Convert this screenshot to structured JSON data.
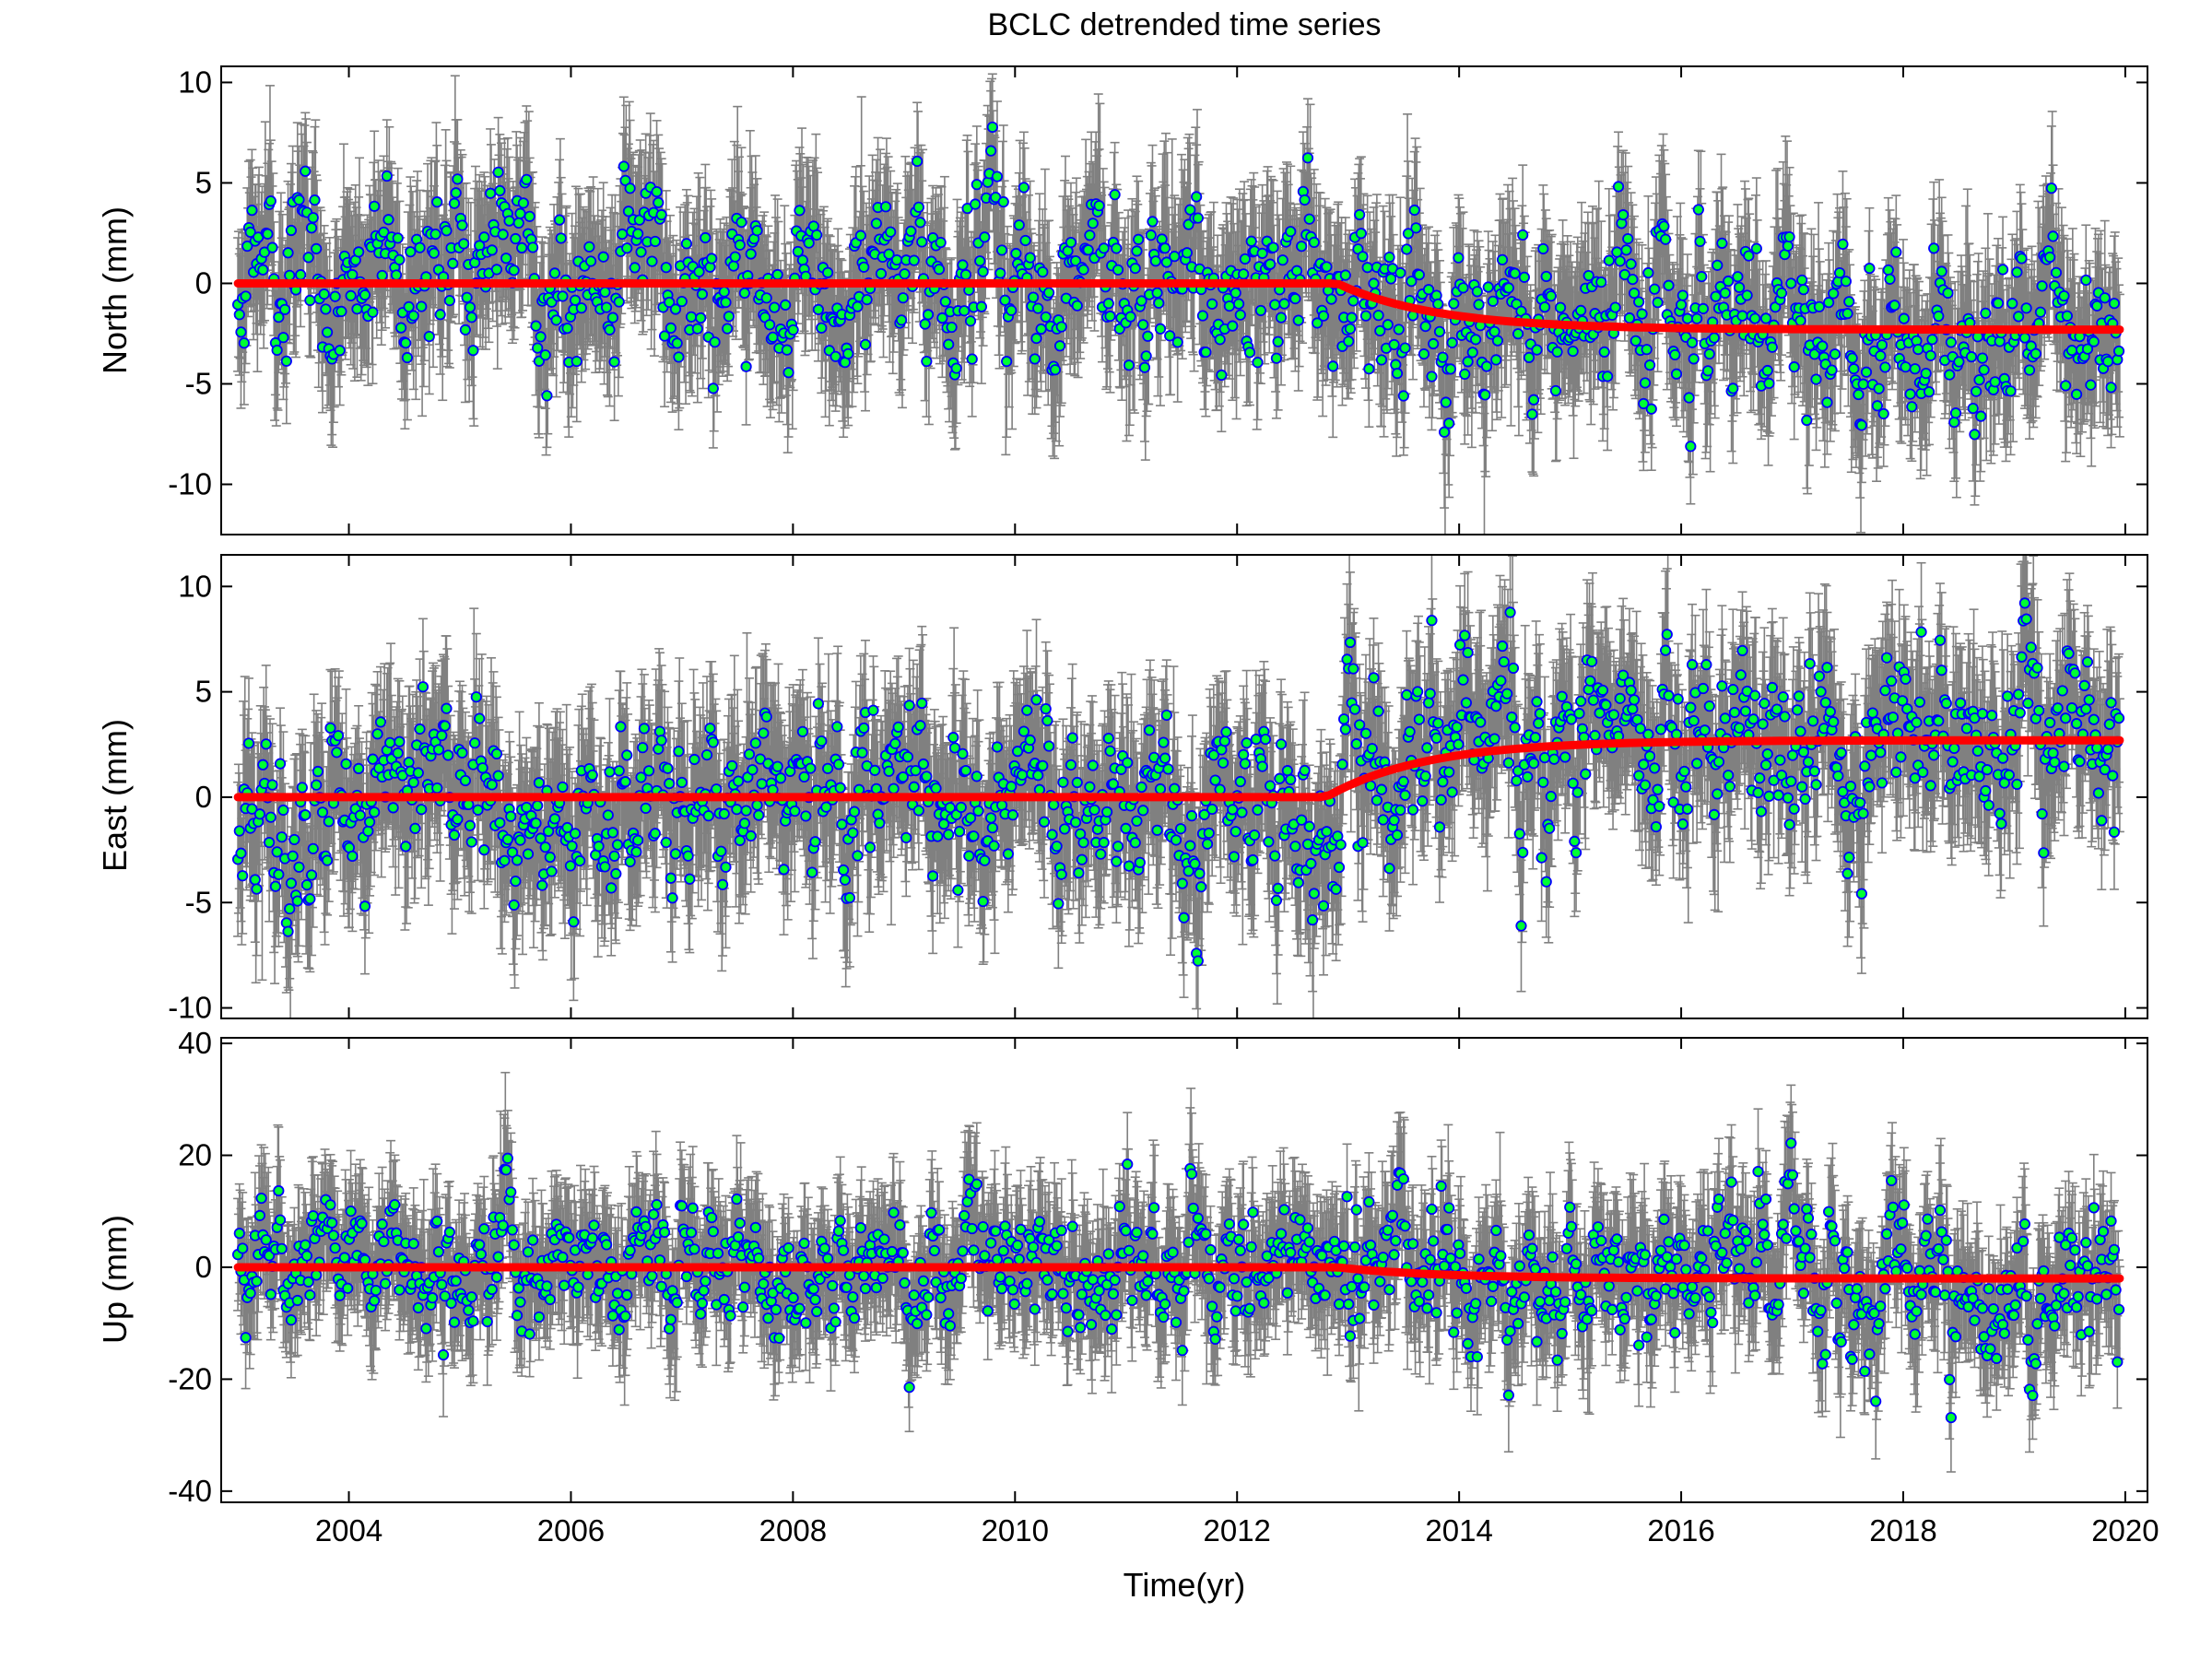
{
  "chart_data": {
    "type": "scatter",
    "title": "BCLC detrended time series",
    "xlabel": "Time(yr)",
    "xlim": [
      2002.85,
      2020.2
    ],
    "xticks": [
      2004,
      2006,
      2008,
      2010,
      2012,
      2014,
      2016,
      2018,
      2020
    ],
    "colors": {
      "error_bar": "#808080",
      "marker_fill": "#00ff33",
      "marker_edge": "#0000ff",
      "model_line": "#ff0000"
    },
    "x_range": [
      2003.0,
      2019.95
    ],
    "panels": [
      {
        "key": "north",
        "ylabel": "North (mm)",
        "ylim": [
          -12.5,
          10.8
        ],
        "yticks": [
          -10,
          -5,
          0,
          5,
          10
        ],
        "offset_epoch": 2012.9,
        "model_before": 0,
        "model_after": -2.3,
        "data_std_before": 2.0,
        "data_std_after": 2.1,
        "error_bar_halfwidth": 3.2
      },
      {
        "key": "east",
        "ylabel": "East (mm)",
        "ylim": [
          -10.5,
          11.5
        ],
        "yticks": [
          -10,
          -5,
          0,
          5,
          10
        ],
        "offset_epoch": 2012.8,
        "model_before": 0,
        "model_after": 2.7,
        "data_std_before": 2.0,
        "data_std_after": 2.0,
        "error_bar_halfwidth": 3.2
      },
      {
        "key": "up",
        "ylabel": "Up (mm)",
        "ylim": [
          -42,
          41
        ],
        "yticks": [
          -40,
          -20,
          0,
          20,
          40
        ],
        "offset_epoch": 2012.9,
        "model_before": 0,
        "model_after": -2.0,
        "data_std_before": 5.5,
        "data_std_after": 6.5,
        "error_bar_halfwidth": 9.5
      }
    ]
  }
}
